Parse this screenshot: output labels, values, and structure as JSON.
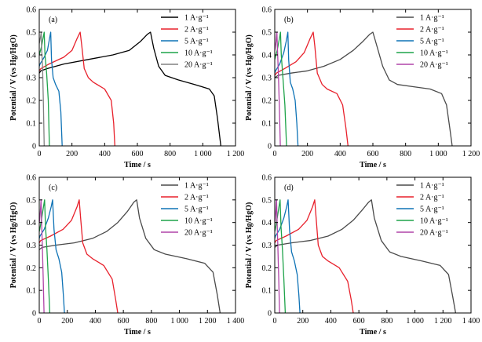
{
  "chart_data": [
    {
      "panel_label": "(a)",
      "type": "line",
      "xlabel": "Time / s",
      "ylabel": "Potential / V (vs Hg/HgO)",
      "xlim": [
        0,
        1200
      ],
      "ylim": [
        0,
        0.6
      ],
      "xticks": [
        0,
        200,
        400,
        600,
        800,
        1000,
        1200
      ],
      "xtick_labels": [
        "0",
        "200",
        "400",
        "600",
        "800",
        "1 000",
        "1 200"
      ],
      "yticks": [
        0,
        0.1,
        0.2,
        0.3,
        0.4,
        0.5,
        0.6
      ],
      "ytick_labels": [
        "0",
        "0.1",
        "0.2",
        "0.3",
        "0.4",
        "0.5",
        "0.6"
      ],
      "legend_position": "top-right",
      "series": [
        {
          "name": "1 A·g⁻¹",
          "color": "#000000",
          "x": [
            0,
            10,
            50,
            150,
            300,
            450,
            550,
            620,
            660,
            680,
            700,
            730,
            770,
            850,
            950,
            1040,
            1070,
            1090,
            1110
          ],
          "y": [
            0.32,
            0.33,
            0.34,
            0.36,
            0.38,
            0.4,
            0.42,
            0.46,
            0.49,
            0.5,
            0.43,
            0.35,
            0.31,
            0.29,
            0.27,
            0.25,
            0.22,
            0.12,
            0.0
          ]
        },
        {
          "name": "2 A·g⁻¹",
          "color": "#e8212c",
          "x": [
            0,
            10,
            60,
            150,
            200,
            230,
            250,
            260,
            275,
            300,
            330,
            400,
            440,
            455,
            462
          ],
          "y": [
            0.33,
            0.34,
            0.36,
            0.39,
            0.42,
            0.47,
            0.5,
            0.44,
            0.34,
            0.3,
            0.28,
            0.25,
            0.2,
            0.1,
            0.0
          ]
        },
        {
          "name": "5 A·g⁻¹",
          "color": "#0f73b6",
          "x": [
            0,
            5,
            30,
            50,
            60,
            65,
            70,
            75,
            85,
            100,
            120,
            132,
            140
          ],
          "y": [
            0.35,
            0.36,
            0.39,
            0.42,
            0.46,
            0.48,
            0.5,
            0.38,
            0.3,
            0.27,
            0.24,
            0.15,
            0.0
          ]
        },
        {
          "name": "10 A·g⁻¹",
          "color": "#1fa34a",
          "x": [
            0,
            4,
            15,
            25,
            30,
            35,
            45,
            55,
            62
          ],
          "y": [
            0.4,
            0.41,
            0.44,
            0.48,
            0.5,
            0.4,
            0.32,
            0.2,
            0.0
          ]
        },
        {
          "name": "20 A·g⁻¹",
          "color": "#808080",
          "x": [
            0,
            3,
            8,
            12,
            15,
            20,
            25,
            30
          ],
          "y": [
            0.45,
            0.46,
            0.48,
            0.5,
            0.42,
            0.35,
            0.2,
            0.0
          ]
        }
      ]
    },
    {
      "panel_label": "(b)",
      "type": "line",
      "xlabel": "Time / s",
      "ylabel": "Potential / V (vs Hg/HgO)",
      "xlim": [
        0,
        1200
      ],
      "ylim": [
        0,
        0.6
      ],
      "xticks": [
        0,
        200,
        400,
        600,
        800,
        1000,
        1200
      ],
      "xtick_labels": [
        "0",
        "200",
        "400",
        "600",
        "800",
        "1 000",
        "1 200"
      ],
      "yticks": [
        0,
        0.1,
        0.2,
        0.3,
        0.4,
        0.5,
        0.6
      ],
      "ytick_labels": [
        "0",
        "0.1",
        "0.2",
        "0.3",
        "0.4",
        "0.5",
        "0.6"
      ],
      "legend_position": "top-right",
      "series": [
        {
          "name": "1 A·g⁻¹",
          "color": "#4a4a4a",
          "x": [
            0,
            20,
            100,
            200,
            300,
            400,
            480,
            540,
            580,
            600,
            620,
            660,
            700,
            750,
            850,
            950,
            1020,
            1050,
            1070,
            1085
          ],
          "y": [
            0.3,
            0.31,
            0.32,
            0.33,
            0.35,
            0.38,
            0.42,
            0.46,
            0.49,
            0.5,
            0.45,
            0.35,
            0.29,
            0.27,
            0.26,
            0.25,
            0.23,
            0.18,
            0.08,
            0.0
          ]
        },
        {
          "name": "2 A·g⁻¹",
          "color": "#e8212c",
          "x": [
            0,
            10,
            60,
            130,
            180,
            215,
            235,
            245,
            260,
            290,
            320,
            380,
            415,
            435,
            448
          ],
          "y": [
            0.31,
            0.32,
            0.34,
            0.37,
            0.41,
            0.47,
            0.5,
            0.44,
            0.32,
            0.27,
            0.25,
            0.23,
            0.18,
            0.08,
            0.0
          ]
        },
        {
          "name": "5 A·g⁻¹",
          "color": "#0f73b6",
          "x": [
            0,
            5,
            30,
            55,
            70,
            80,
            85,
            95,
            110,
            125,
            135,
            142
          ],
          "y": [
            0.32,
            0.33,
            0.36,
            0.41,
            0.46,
            0.5,
            0.38,
            0.28,
            0.25,
            0.2,
            0.1,
            0.0
          ]
        },
        {
          "name": "10 A·g⁻¹",
          "color": "#1fa34a",
          "x": [
            0,
            4,
            15,
            28,
            35,
            40,
            50,
            62,
            72
          ],
          "y": [
            0.38,
            0.39,
            0.42,
            0.47,
            0.5,
            0.4,
            0.3,
            0.18,
            0.0
          ]
        },
        {
          "name": "20 A·g⁻¹",
          "color": "#b043a8",
          "x": [
            0,
            3,
            8,
            13,
            17,
            22,
            28,
            34
          ],
          "y": [
            0.42,
            0.43,
            0.46,
            0.5,
            0.42,
            0.32,
            0.18,
            0.0
          ]
        }
      ]
    },
    {
      "panel_label": "(c)",
      "type": "line",
      "xlabel": "Time / s",
      "ylabel": "Potential / V (vs Hg/HgO)",
      "xlim": [
        0,
        1400
      ],
      "ylim": [
        0,
        0.6
      ],
      "xticks": [
        0,
        200,
        400,
        600,
        800,
        1000,
        1200,
        1400
      ],
      "xtick_labels": [
        "0",
        "200",
        "400",
        "600",
        "800",
        "1 000",
        "1 200",
        "1 400"
      ],
      "yticks": [
        0,
        0.1,
        0.2,
        0.3,
        0.4,
        0.5,
        0.6
      ],
      "ytick_labels": [
        "0",
        "0.1",
        "0.2",
        "0.3",
        "0.4",
        "0.5",
        "0.6"
      ],
      "legend_position": "top-right",
      "series": [
        {
          "name": "1 A·g⁻¹",
          "color": "#4a4a4a",
          "x": [
            0,
            20,
            120,
            250,
            380,
            480,
            560,
            630,
            675,
            695,
            715,
            760,
            820,
            900,
            1050,
            1180,
            1240,
            1270,
            1290
          ],
          "y": [
            0.28,
            0.29,
            0.3,
            0.31,
            0.33,
            0.36,
            0.4,
            0.45,
            0.49,
            0.5,
            0.42,
            0.33,
            0.28,
            0.26,
            0.24,
            0.22,
            0.18,
            0.08,
            0.0
          ]
        },
        {
          "name": "2 A·g⁻¹",
          "color": "#e8212c",
          "x": [
            0,
            10,
            80,
            170,
            230,
            270,
            285,
            295,
            310,
            340,
            380,
            460,
            520,
            545,
            560
          ],
          "y": [
            0.31,
            0.32,
            0.34,
            0.37,
            0.41,
            0.47,
            0.5,
            0.42,
            0.31,
            0.26,
            0.24,
            0.21,
            0.15,
            0.06,
            0.0
          ]
        },
        {
          "name": "5 A·g⁻¹",
          "color": "#0f73b6",
          "x": [
            0,
            5,
            35,
            65,
            85,
            95,
            105,
            120,
            140,
            160,
            172,
            180
          ],
          "y": [
            0.33,
            0.34,
            0.37,
            0.42,
            0.47,
            0.5,
            0.37,
            0.28,
            0.24,
            0.18,
            0.08,
            0.0
          ]
        },
        {
          "name": "10 A·g⁻¹",
          "color": "#1fa34a",
          "x": [
            0,
            4,
            15,
            30,
            38,
            45,
            55,
            65,
            75
          ],
          "y": [
            0.36,
            0.37,
            0.41,
            0.47,
            0.5,
            0.38,
            0.28,
            0.15,
            0.0
          ]
        },
        {
          "name": "20 A·g⁻¹",
          "color": "#b043a8",
          "x": [
            0,
            3,
            8,
            13,
            17,
            22,
            28,
            34
          ],
          "y": [
            0.4,
            0.41,
            0.45,
            0.5,
            0.4,
            0.3,
            0.16,
            0.0
          ]
        }
      ]
    },
    {
      "panel_label": "(d)",
      "type": "line",
      "xlabel": "Time / s",
      "ylabel": "Potential / V (vs Hg/HgO)",
      "xlim": [
        0,
        1400
      ],
      "ylim": [
        0,
        0.6
      ],
      "xticks": [
        0,
        200,
        400,
        600,
        800,
        1000,
        1200,
        1400
      ],
      "xtick_labels": [
        "0",
        "200",
        "400",
        "600",
        "800",
        "1 000",
        "1 200",
        "1 400"
      ],
      "yticks": [
        0,
        0.1,
        0.2,
        0.3,
        0.4,
        0.5,
        0.6
      ],
      "ytick_labels": [
        "0",
        "0.1",
        "0.2",
        "0.3",
        "0.4",
        "0.5",
        "0.6"
      ],
      "legend_position": "top-right",
      "series": [
        {
          "name": "1 A·g⁻¹",
          "color": "#4a4a4a",
          "x": [
            0,
            20,
            120,
            250,
            380,
            480,
            560,
            630,
            670,
            690,
            710,
            760,
            820,
            900,
            1050,
            1180,
            1240,
            1270,
            1290
          ],
          "y": [
            0.29,
            0.3,
            0.31,
            0.32,
            0.34,
            0.37,
            0.41,
            0.46,
            0.49,
            0.5,
            0.42,
            0.32,
            0.27,
            0.25,
            0.23,
            0.21,
            0.17,
            0.07,
            0.0
          ]
        },
        {
          "name": "2 A·g⁻¹",
          "color": "#e8212c",
          "x": [
            0,
            10,
            80,
            170,
            230,
            270,
            285,
            295,
            310,
            340,
            380,
            460,
            520,
            545,
            560
          ],
          "y": [
            0.31,
            0.32,
            0.34,
            0.37,
            0.41,
            0.47,
            0.5,
            0.42,
            0.3,
            0.25,
            0.23,
            0.2,
            0.14,
            0.06,
            0.0
          ]
        },
        {
          "name": "5 A·g⁻¹",
          "color": "#0f73b6",
          "x": [
            0,
            5,
            35,
            65,
            85,
            95,
            105,
            120,
            140,
            160,
            172,
            180
          ],
          "y": [
            0.33,
            0.34,
            0.37,
            0.42,
            0.47,
            0.5,
            0.37,
            0.27,
            0.23,
            0.17,
            0.08,
            0.0
          ]
        },
        {
          "name": "10 A·g⁻¹",
          "color": "#1fa34a",
          "x": [
            0,
            4,
            15,
            30,
            38,
            45,
            55,
            65,
            75
          ],
          "y": [
            0.36,
            0.37,
            0.41,
            0.47,
            0.5,
            0.38,
            0.28,
            0.15,
            0.0
          ]
        },
        {
          "name": "20 A·g⁻¹",
          "color": "#b043a8",
          "x": [
            0,
            3,
            8,
            13,
            17,
            22,
            28,
            34
          ],
          "y": [
            0.4,
            0.41,
            0.45,
            0.5,
            0.4,
            0.3,
            0.16,
            0.0
          ]
        }
      ]
    }
  ]
}
